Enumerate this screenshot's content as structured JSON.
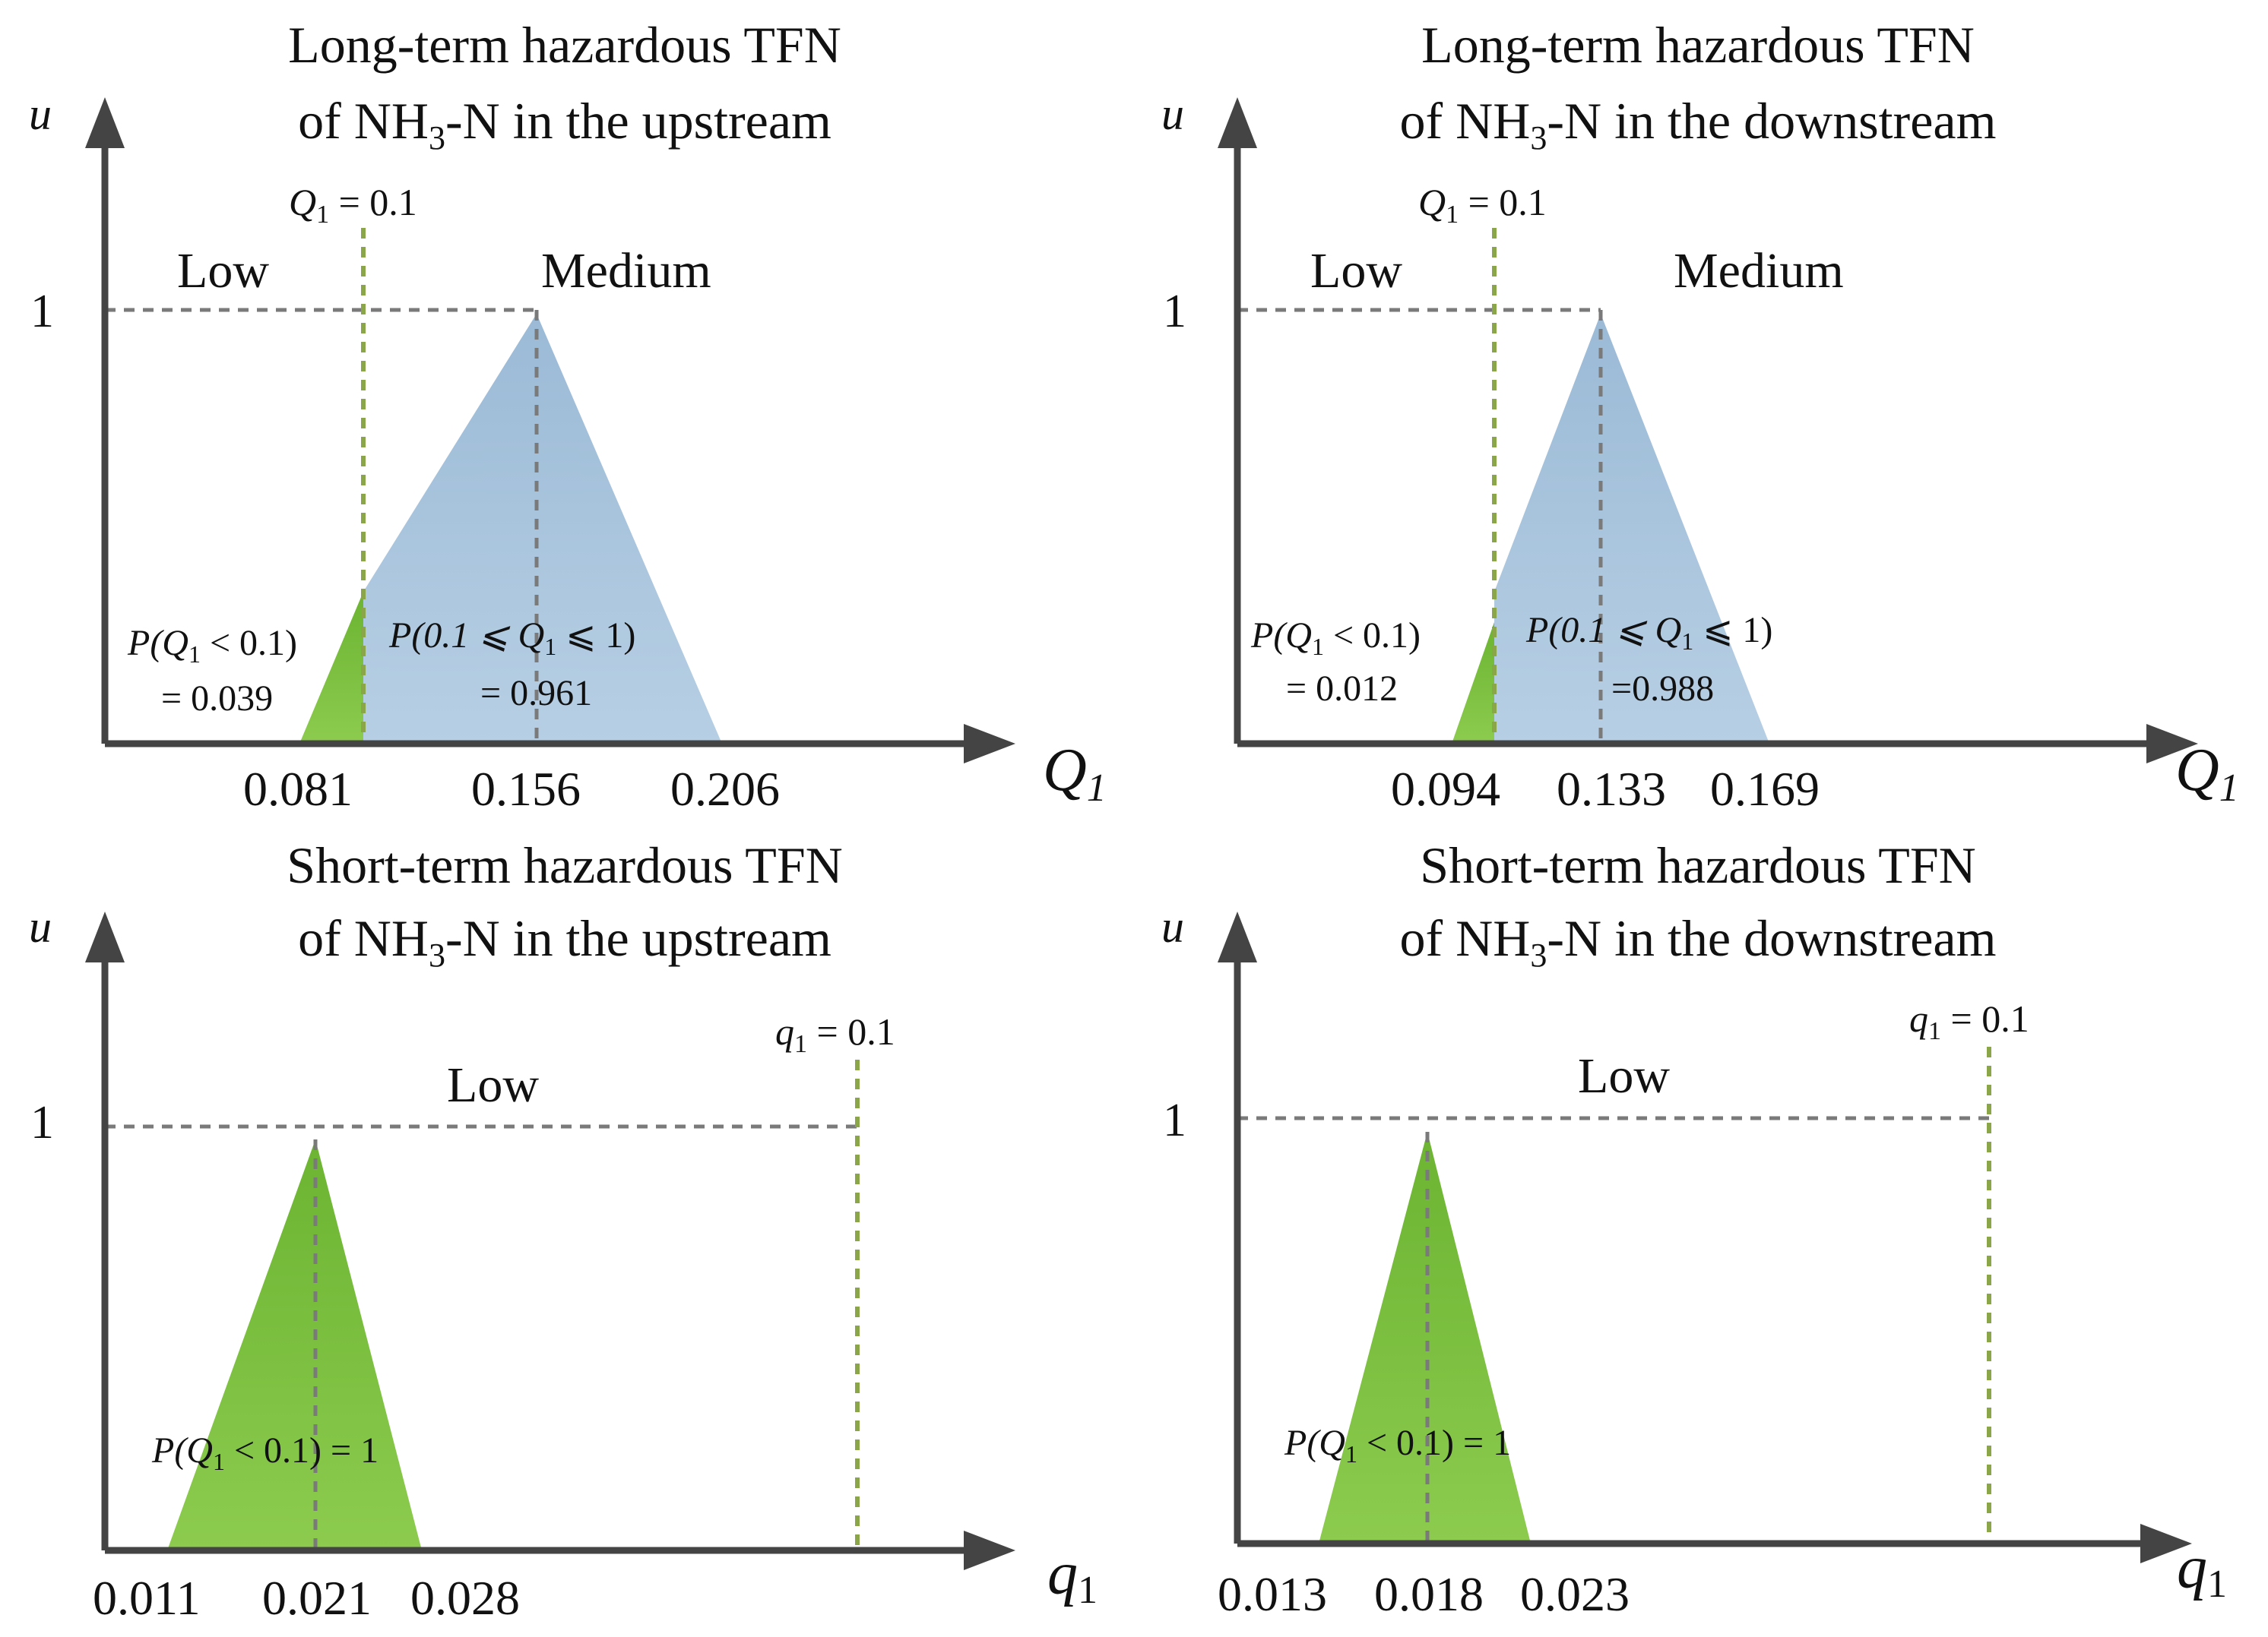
{
  "panels": [
    {
      "title_line1": "Long-term hazardous TFN",
      "title_line2_pre": "of NH",
      "title_line2_sub": "3",
      "title_line2_post": "-N in the upstream",
      "y_axis_label": "u",
      "x_axis_label": "Q",
      "x_axis_sub": "1",
      "y_one_label": "1",
      "threshold_label": "Q",
      "threshold_sub": "1",
      "threshold_value": " = 0.1",
      "region_low": "Low",
      "region_medium": "Medium",
      "tick_labels": [
        "0.081",
        "0.156",
        "0.206"
      ],
      "prob_low_line1": "P(Q",
      "prob_low_sub": "1",
      "prob_low_rest": " < 0.1)",
      "prob_low_line2": "= 0.039",
      "prob_med_line1": "P(0.1 ⩽ Q",
      "prob_med_sub": "1",
      "prob_med_rest": " ⩽ 1)",
      "prob_med_line2": "= 0.961"
    },
    {
      "title_line1": "Long-term hazardous TFN",
      "title_line2_pre": "of NH",
      "title_line2_sub": "3",
      "title_line2_post": "-N in the downstream",
      "y_axis_label": "u",
      "x_axis_label": "Q",
      "x_axis_sub": "1",
      "y_one_label": "1",
      "threshold_label": "Q",
      "threshold_sub": "1",
      "threshold_value": " = 0.1",
      "region_low": "Low",
      "region_medium": "Medium",
      "tick_labels": [
        "0.094",
        "0.133",
        "0.169"
      ],
      "prob_low_line1": "P(Q",
      "prob_low_sub": "1",
      "prob_low_rest": " < 0.1)",
      "prob_low_line2": "= 0.012",
      "prob_med_line1": "P(0.1 ⩽ Q",
      "prob_med_sub": "1",
      "prob_med_rest": " ⩽ 1)",
      "prob_med_line2": "=0.988"
    },
    {
      "title_line1": "Short-term hazardous TFN",
      "title_line2_pre": "of NH",
      "title_line2_sub": "3",
      "title_line2_post": "-N in the upstream",
      "y_axis_label": "u",
      "x_axis_label": "q",
      "x_axis_sub": "1",
      "y_one_label": "1",
      "threshold_label": "q",
      "threshold_sub": "1",
      "threshold_value": " = 0.1",
      "region_low": "Low",
      "tick_labels": [
        "0.011",
        "0.021",
        "0.028"
      ],
      "prob_line1": "P(Q",
      "prob_sub": "1",
      "prob_rest": " < 0.1) = 1"
    },
    {
      "title_line1": "Short-term hazardous TFN",
      "title_line2_pre": "of NH",
      "title_line2_sub": "3",
      "title_line2_post": "-N in the downstream",
      "y_axis_label": "u",
      "x_axis_label": "q",
      "x_axis_sub": "1",
      "y_one_label": "1",
      "threshold_label": "q",
      "threshold_sub": "1",
      "threshold_value": " = 0.1",
      "region_low": "Low",
      "tick_labels": [
        "0.013",
        "0.018",
        "0.023"
      ],
      "prob_line1": "P(Q",
      "prob_sub": "1",
      "prob_rest": " < 0.1) = 1"
    }
  ],
  "colors": {
    "blue_fill": "#9fc0dc",
    "green_fill": "#78bd3c",
    "axis": "#444444",
    "dashed": "#7a7a7a",
    "threshold_dashed": "#8aa648"
  },
  "tfn_values": {
    "long_up": {
      "a": 0.081,
      "b": 0.156,
      "c": 0.206,
      "threshold": 0.1
    },
    "long_down": {
      "a": 0.094,
      "b": 0.133,
      "c": 0.169,
      "threshold": 0.1
    },
    "short_up": {
      "a": 0.011,
      "b": 0.021,
      "c": 0.028,
      "threshold": 0.1
    },
    "short_down": {
      "a": 0.013,
      "b": 0.018,
      "c": 0.023,
      "threshold": 0.1
    }
  }
}
